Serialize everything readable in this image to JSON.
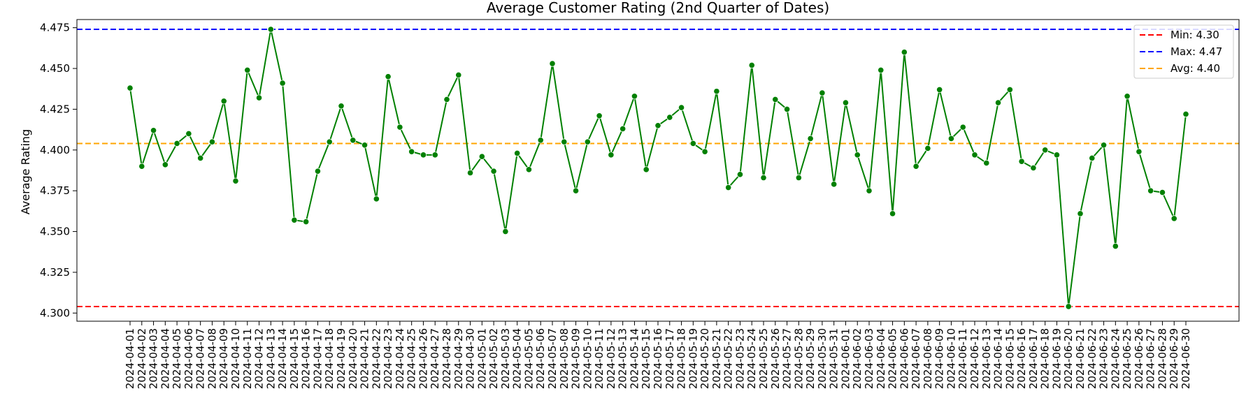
{
  "chart_data": {
    "type": "line",
    "title": "Average Customer Rating (2nd Quarter of Dates)",
    "xlabel": "",
    "ylabel": "Average Rating",
    "ylim": [
      4.295,
      4.48
    ],
    "yticks": [
      "4.300",
      "4.325",
      "4.350",
      "4.375",
      "4.400",
      "4.425",
      "4.450",
      "4.475"
    ],
    "grid": false,
    "legend_position": "top-right",
    "colors": {
      "line": "#008000",
      "marker": "#008000",
      "min": "#ff0000",
      "max": "#0000ff",
      "avg": "#ffa500"
    },
    "x": [
      "2024-04-01",
      "2024-04-02",
      "2024-04-03",
      "2024-04-04",
      "2024-04-05",
      "2024-04-06",
      "2024-04-07",
      "2024-04-08",
      "2024-04-09",
      "2024-04-10",
      "2024-04-11",
      "2024-04-12",
      "2024-04-13",
      "2024-04-14",
      "2024-04-15",
      "2024-04-16",
      "2024-04-17",
      "2024-04-18",
      "2024-04-19",
      "2024-04-20",
      "2024-04-21",
      "2024-04-22",
      "2024-04-23",
      "2024-04-24",
      "2024-04-25",
      "2024-04-26",
      "2024-04-27",
      "2024-04-28",
      "2024-04-29",
      "2024-04-30",
      "2024-05-01",
      "2024-05-02",
      "2024-05-03",
      "2024-05-04",
      "2024-05-05",
      "2024-05-06",
      "2024-05-07",
      "2024-05-08",
      "2024-05-09",
      "2024-05-10",
      "2024-05-11",
      "2024-05-12",
      "2024-05-13",
      "2024-05-14",
      "2024-05-15",
      "2024-05-16",
      "2024-05-17",
      "2024-05-18",
      "2024-05-19",
      "2024-05-20",
      "2024-05-21",
      "2024-05-22",
      "2024-05-23",
      "2024-05-24",
      "2024-05-25",
      "2024-05-26",
      "2024-05-27",
      "2024-05-28",
      "2024-05-29",
      "2024-05-30",
      "2024-05-31",
      "2024-06-01",
      "2024-06-02",
      "2024-06-03",
      "2024-06-04",
      "2024-06-05",
      "2024-06-06",
      "2024-06-07",
      "2024-06-08",
      "2024-06-09",
      "2024-06-10",
      "2024-06-11",
      "2024-06-12",
      "2024-06-13",
      "2024-06-14",
      "2024-06-15",
      "2024-06-16",
      "2024-06-17",
      "2024-06-18",
      "2024-06-19",
      "2024-06-20",
      "2024-06-21",
      "2024-06-22",
      "2024-06-23",
      "2024-06-24",
      "2024-06-25",
      "2024-06-26",
      "2024-06-27",
      "2024-06-28",
      "2024-06-29",
      "2024-06-30"
    ],
    "series": [
      {
        "values": [
          4.438,
          4.39,
          4.412,
          4.391,
          4.404,
          4.41,
          4.395,
          4.405,
          4.43,
          4.381,
          4.449,
          4.432,
          4.474,
          4.441,
          4.357,
          4.356,
          4.387,
          4.405,
          4.427,
          4.406,
          4.403,
          4.37,
          4.445,
          4.414,
          4.399,
          4.397,
          4.397,
          4.431,
          4.446,
          4.386,
          4.396,
          4.387,
          4.35,
          4.398,
          4.388,
          4.406,
          4.453,
          4.405,
          4.375,
          4.405,
          4.421,
          4.397,
          4.413,
          4.433,
          4.388,
          4.415,
          4.42,
          4.426,
          4.404,
          4.399,
          4.436,
          4.377,
          4.385,
          4.452,
          4.383,
          4.431,
          4.425,
          4.383,
          4.407,
          4.435,
          4.379,
          4.429,
          4.397,
          4.375,
          4.449,
          4.361,
          4.46,
          4.39,
          4.401,
          4.437,
          4.407,
          4.414,
          4.397,
          4.392,
          4.429,
          4.437,
          4.393,
          4.389,
          4.4,
          4.397,
          4.304,
          4.361,
          4.395,
          4.403,
          4.341,
          4.433,
          4.399,
          4.375,
          4.374,
          4.358,
          4.422
        ]
      }
    ],
    "reference_lines": [
      {
        "name": "Min: 4.30",
        "value": 4.304,
        "color": "#ff0000"
      },
      {
        "name": "Max: 4.47",
        "value": 4.474,
        "color": "#0000ff"
      },
      {
        "name": "Avg: 4.40",
        "value": 4.404,
        "color": "#ffa500"
      }
    ]
  }
}
